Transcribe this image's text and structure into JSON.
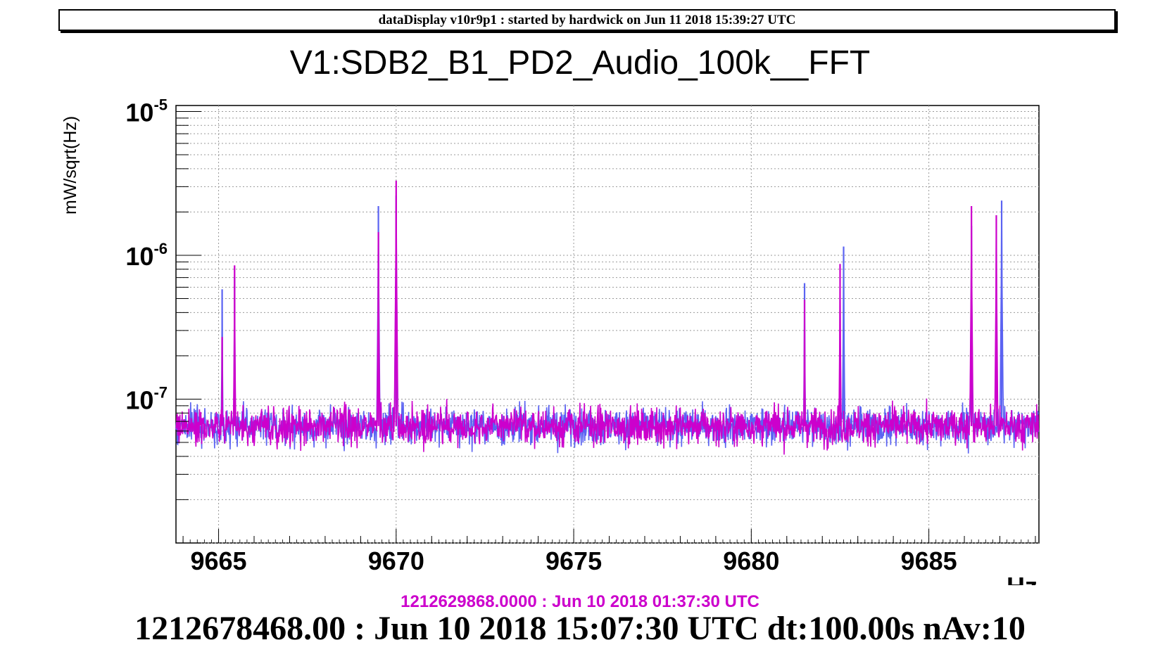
{
  "header": {
    "text": "dataDisplay v10r9p1 : started by hardwick on Jun 11 2018 15:39:27 UTC"
  },
  "footer": {
    "reference_time": "1212629868.0000 : Jun 10 2018 01:37:30 UTC",
    "reference_color": "#cc00cc",
    "main_time": "1212678468.00 : Jun 10 2018 15:07:30 UTC dt:100.00s nAv:10"
  },
  "chart_data": {
    "type": "line",
    "title": "V1:SDB2_B1_PD2_Audio_100k__FFT",
    "ylabel": "mW/sqrt(Hz)",
    "xlabel": "Hz",
    "xlim": [
      9663.8,
      9688.1
    ],
    "ylim": [
      1e-08,
      1.1e-05
    ],
    "yscale": "log",
    "grid": true,
    "x_ticks": [
      9665,
      9670,
      9675,
      9680,
      9685
    ],
    "y_ticks": [
      {
        "value": 1e-07,
        "base": "10",
        "exp": "-7"
      },
      {
        "value": 1e-06,
        "base": "10",
        "exp": "-6"
      },
      {
        "value": 1e-05,
        "base": "10",
        "exp": "-5"
      }
    ],
    "noise_floor": 6.5e-08,
    "series": [
      {
        "color": "#5b63f2",
        "peaks": [
          {
            "x": 9665.1,
            "y": 5.8e-07
          },
          {
            "x": 9665.45,
            "y": 7e-07
          },
          {
            "x": 9669.5,
            "y": 2.2e-06
          },
          {
            "x": 9670.0,
            "y": 2.6e-06
          },
          {
            "x": 9681.5,
            "y": 6.4e-07
          },
          {
            "x": 9682.6,
            "y": 1.15e-06
          },
          {
            "x": 9686.2,
            "y": 1.6e-06
          },
          {
            "x": 9687.05,
            "y": 2.4e-06
          }
        ]
      },
      {
        "color": "#cc00cc",
        "peaks": [
          {
            "x": 9665.1,
            "y": 2.7e-07
          },
          {
            "x": 9665.45,
            "y": 8.5e-07
          },
          {
            "x": 9669.5,
            "y": 1.45e-06
          },
          {
            "x": 9670.0,
            "y": 3.3e-06
          },
          {
            "x": 9681.5,
            "y": 4.9e-07
          },
          {
            "x": 9682.5,
            "y": 8.7e-07
          },
          {
            "x": 9686.2,
            "y": 2.2e-06
          },
          {
            "x": 9686.9,
            "y": 1.9e-06
          }
        ]
      }
    ]
  }
}
